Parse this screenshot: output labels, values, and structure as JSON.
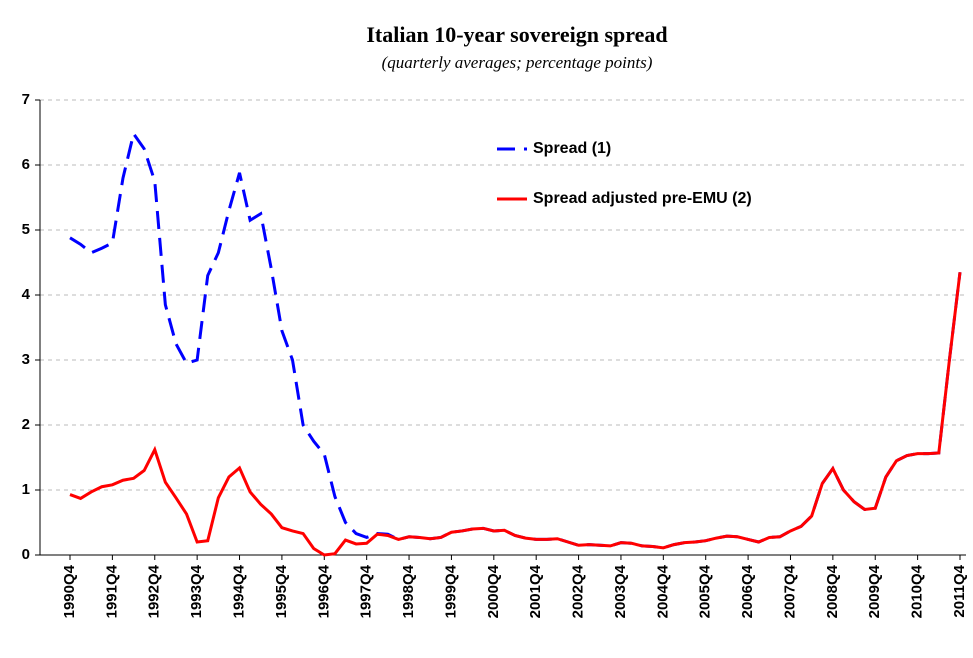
{
  "chart_data": {
    "type": "line",
    "title": "Italian 10-year sovereign spread",
    "subtitle": "(quarterly averages; percentage points)",
    "categories": [
      "1990Q4",
      null,
      null,
      null,
      "1991Q4",
      null,
      null,
      null,
      "1992Q4",
      null,
      null,
      null,
      "1993Q4",
      null,
      null,
      null,
      "1994Q4",
      null,
      null,
      null,
      "1995Q4",
      null,
      null,
      null,
      "1996Q4",
      null,
      null,
      null,
      "1997Q4",
      null,
      null,
      null,
      "1998Q4",
      null,
      null,
      null,
      "1999Q4",
      null,
      null,
      null,
      "2000Q4",
      null,
      null,
      null,
      "2001Q4",
      null,
      null,
      null,
      "2002Q4",
      null,
      null,
      null,
      "2003Q4",
      null,
      null,
      null,
      "2004Q4",
      null,
      null,
      null,
      "2005Q4",
      null,
      null,
      null,
      "2006Q4",
      null,
      null,
      null,
      "2007Q4",
      null,
      null,
      null,
      "2008Q4",
      null,
      null,
      null,
      "2009Q4",
      null,
      null,
      null,
      "2010Q4",
      null,
      null,
      null,
      "2011Q4"
    ],
    "series": [
      {
        "name": "Spread (1)",
        "color": "#0000ff",
        "style": "dashed",
        "values": [
          4.88,
          4.78,
          4.65,
          4.72,
          4.8,
          5.8,
          6.48,
          6.25,
          5.75,
          3.85,
          3.25,
          2.95,
          3.0,
          4.3,
          4.65,
          5.3,
          5.88,
          5.15,
          5.25,
          4.4,
          3.45,
          3.0,
          2.0,
          1.75,
          1.55,
          0.9,
          0.5,
          0.33,
          0.27,
          0.33,
          0.32,
          0.24,
          0.28,
          0.27,
          0.25,
          0.27,
          0.35,
          0.37,
          0.4,
          0.41,
          0.37,
          0.38,
          0.3,
          0.26,
          0.24,
          0.24,
          0.25,
          0.2,
          0.15,
          0.16,
          0.15,
          0.14,
          0.19,
          0.18,
          0.14,
          0.13,
          0.11,
          0.16,
          0.19,
          0.2,
          0.22,
          0.26,
          0.29,
          0.28,
          0.24,
          0.2,
          0.27,
          0.28,
          0.37,
          0.44,
          0.6,
          1.1,
          1.33,
          1.0,
          0.82,
          0.7,
          0.72,
          1.2,
          1.45,
          1.53,
          1.56,
          1.56,
          1.57,
          3.0,
          4.35
        ]
      },
      {
        "name": "Spread adjusted pre-EMU (2)",
        "color": "#ff0000",
        "style": "solid",
        "values": [
          0.93,
          0.87,
          0.97,
          1.05,
          1.08,
          1.15,
          1.18,
          1.3,
          1.62,
          1.12,
          0.88,
          0.63,
          0.2,
          0.22,
          0.88,
          1.2,
          1.34,
          0.97,
          0.78,
          0.63,
          0.42,
          0.37,
          0.33,
          0.1,
          0.0,
          0.02,
          0.23,
          0.17,
          0.18,
          0.32,
          0.3,
          0.24,
          0.28,
          0.27,
          0.25,
          0.27,
          0.35,
          0.37,
          0.4,
          0.41,
          0.37,
          0.38,
          0.3,
          0.26,
          0.24,
          0.24,
          0.25,
          0.2,
          0.15,
          0.16,
          0.15,
          0.14,
          0.19,
          0.18,
          0.14,
          0.13,
          0.11,
          0.16,
          0.19,
          0.2,
          0.22,
          0.26,
          0.29,
          0.28,
          0.24,
          0.2,
          0.27,
          0.28,
          0.37,
          0.44,
          0.6,
          1.1,
          1.33,
          1.0,
          0.82,
          0.7,
          0.72,
          1.2,
          1.45,
          1.53,
          1.56,
          1.56,
          1.57,
          3.0,
          4.35
        ]
      }
    ],
    "ylim": [
      0,
      7
    ],
    "yticks": [
      0,
      1,
      2,
      3,
      4,
      5,
      6,
      7
    ],
    "grid": true
  }
}
